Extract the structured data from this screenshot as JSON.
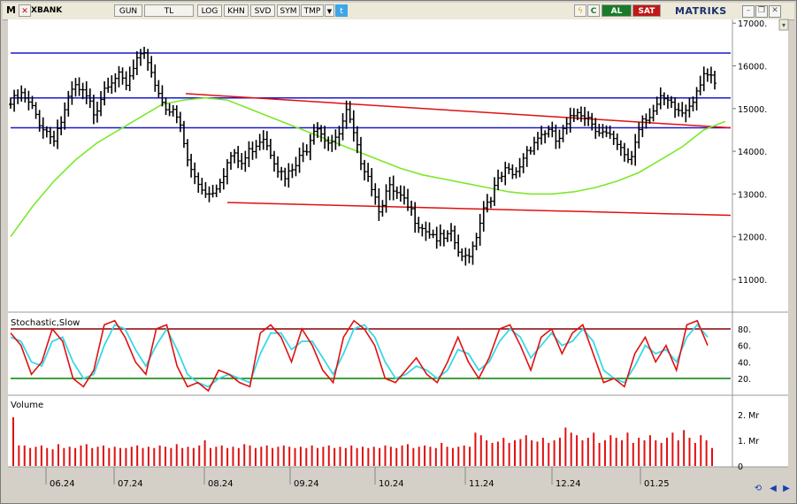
{
  "toolbar": {
    "m_label": "M",
    "symbol": "XBANK",
    "period": "GUN",
    "currency": "TL",
    "log": "LOG",
    "khn": "KHN",
    "svd": "SVD",
    "sym": "SYM",
    "tmp": "TMP",
    "c_label": "C",
    "buy": "AL",
    "sell": "SAT",
    "brand": "MATRIKS"
  },
  "colors": {
    "price": "#000000",
    "resistance": "#1a1acc",
    "trend": "#e01010",
    "ma": "#7de82a",
    "stoch_k": "#e01010",
    "stoch_d": "#38d8e8",
    "stoch_upper": "#8b0000",
    "stoch_lower": "#008000",
    "volume": "#e01010"
  },
  "chart_data": [
    {
      "type": "ohlc",
      "x_ticks": [
        "06.24",
        "07.24",
        "08.24",
        "09.24",
        "10.24",
        "11.24",
        "12.24",
        "01.25"
      ],
      "y_ticks": [
        "17000.",
        "16000.",
        "15000.",
        "14000.",
        "13000.",
        "12000.",
        "11000."
      ],
      "close": [
        15100,
        15300,
        15000,
        14600,
        14300,
        14800,
        15500,
        15300,
        14900,
        15600,
        15800,
        15500,
        16100,
        16200,
        15400,
        15000,
        14700,
        13600,
        13200,
        13000,
        13400,
        13900,
        13700,
        14100,
        14400,
        13900,
        13300,
        13600,
        14000,
        14700,
        14300,
        14200,
        14900,
        14000,
        13500,
        12700,
        13100,
        12900,
        12600,
        12300,
        12100,
        11900,
        12000,
        11400,
        11800,
        12700,
        13100,
        13500,
        13400,
        14000,
        14300,
        14500,
        14200,
        14600,
        15000,
        14800,
        14500,
        14300,
        14000,
        13800,
        14800,
        14900,
        15200,
        15000,
        14900,
        15300,
        15900,
        15500
      ],
      "resistance_levels": [
        16300,
        15250,
        14550
      ],
      "upper_trendline": {
        "from": 15350,
        "to": 14550
      },
      "lower_trendline": {
        "from": 12800,
        "to": 12500
      },
      "moving_average": [
        12000,
        12700,
        13300,
        13800,
        14200,
        14500,
        14800,
        15100,
        15200,
        15250,
        15200,
        15000,
        14800,
        14600,
        14400,
        14200,
        14000,
        13800,
        13600,
        13450,
        13350,
        13250,
        13150,
        13050,
        13000,
        13000,
        13050,
        13150,
        13300,
        13500,
        13800,
        14100,
        14500,
        14700
      ]
    },
    {
      "type": "line",
      "title": "Stochastic,Slow",
      "y_ticks": [
        "80.",
        "60.",
        "40.",
        "20."
      ],
      "upper_level": 80,
      "lower_level": 20,
      "slow_k": [
        75,
        60,
        25,
        40,
        80,
        65,
        20,
        10,
        30,
        85,
        90,
        70,
        40,
        25,
        80,
        85,
        35,
        10,
        15,
        5,
        30,
        25,
        15,
        10,
        75,
        85,
        70,
        40,
        80,
        60,
        30,
        15,
        70,
        90,
        80,
        60,
        20,
        15,
        30,
        45,
        25,
        15,
        40,
        70,
        40,
        20,
        45,
        80,
        85,
        60,
        30,
        70,
        80,
        50,
        75,
        85,
        50,
        15,
        20,
        10,
        50,
        70,
        40,
        60,
        30,
        85,
        90,
        60
      ],
      "slow_d": [
        70,
        65,
        40,
        35,
        65,
        70,
        40,
        20,
        25,
        60,
        85,
        80,
        55,
        35,
        60,
        80,
        55,
        25,
        15,
        10,
        20,
        25,
        20,
        15,
        50,
        75,
        75,
        55,
        65,
        65,
        45,
        25,
        50,
        80,
        85,
        70,
        40,
        20,
        25,
        35,
        30,
        20,
        30,
        55,
        50,
        30,
        40,
        65,
        80,
        70,
        45,
        60,
        75,
        60,
        65,
        80,
        65,
        30,
        20,
        15,
        35,
        60,
        50,
        55,
        40,
        70,
        85,
        70
      ],
      "series": [
        {
          "name": "",
          "color_key": "stoch_k"
        },
        {
          "name": "",
          "color_key": "stoch_d"
        }
      ]
    },
    {
      "type": "bar",
      "title": "Volume",
      "y_ticks": [
        "2. Mr",
        "1. Mr",
        "0"
      ],
      "values_mr": [
        1.9,
        0.8,
        0.8,
        0.7,
        0.75,
        0.8,
        0.7,
        0.65,
        0.85,
        0.7,
        0.75,
        0.7,
        0.8,
        0.85,
        0.7,
        0.75,
        0.8,
        0.7,
        0.75,
        0.7,
        0.7,
        0.75,
        0.8,
        0.7,
        0.75,
        0.7,
        0.8,
        0.75,
        0.7,
        0.85,
        0.7,
        0.75,
        0.7,
        0.8,
        1.0,
        0.7,
        0.75,
        0.8,
        0.7,
        0.75,
        0.7,
        0.85,
        0.8,
        0.7,
        0.75,
        0.8,
        0.7,
        0.75,
        0.8,
        0.75,
        0.7,
        0.75,
        0.7,
        0.8,
        0.7,
        0.75,
        0.8,
        0.7,
        0.75,
        0.7,
        0.8,
        0.7,
        0.75,
        0.7,
        0.75,
        0.7,
        0.8,
        0.75,
        0.7,
        0.8,
        0.85,
        0.7,
        0.75,
        0.8,
        0.75,
        0.7,
        0.9,
        0.75,
        0.7,
        0.75,
        0.8,
        0.75,
        1.3,
        1.2,
        1.0,
        0.9,
        0.95,
        1.1,
        0.9,
        1.0,
        1.05,
        1.2,
        1.0,
        0.95,
        1.1,
        0.9,
        1.0,
        1.1,
        1.5,
        1.3,
        1.2,
        1.0,
        1.1,
        1.3,
        0.9,
        1.0,
        1.2,
        1.1,
        1.0,
        1.3,
        0.9,
        1.1,
        1.0,
        1.2,
        1.0,
        0.9,
        1.1,
        1.3,
        1.0,
        1.4,
        1.1,
        0.9,
        1.2,
        1.0,
        0.7
      ]
    }
  ]
}
